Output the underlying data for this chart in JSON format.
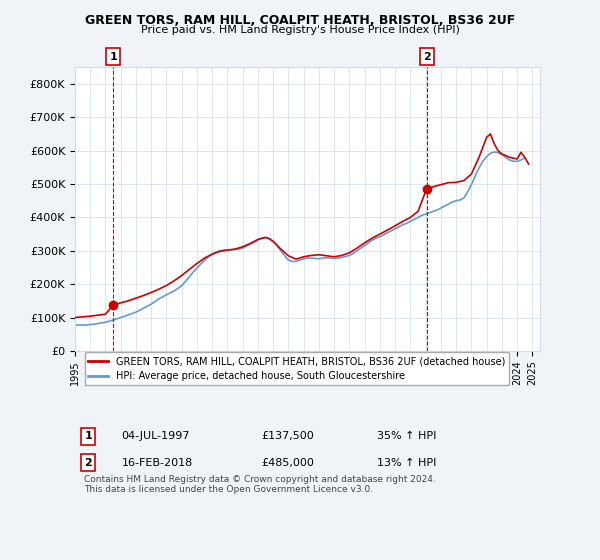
{
  "title": "GREEN TORS, RAM HILL, COALPIT HEATH, BRISTOL, BS36 2UF",
  "subtitle": "Price paid vs. HM Land Registry's House Price Index (HPI)",
  "ylabel": "",
  "xlim_start": 1995,
  "xlim_end": 2025.5,
  "ylim": [
    0,
    850000
  ],
  "yticks": [
    0,
    100000,
    200000,
    300000,
    400000,
    500000,
    600000,
    700000,
    800000
  ],
  "ytick_labels": [
    "£0",
    "£100K",
    "£200K",
    "£300K",
    "£400K",
    "£500K",
    "£600K",
    "£700K",
    "£800K"
  ],
  "xticks": [
    1995,
    1996,
    1997,
    1998,
    1999,
    2000,
    2001,
    2002,
    2003,
    2004,
    2005,
    2006,
    2007,
    2008,
    2009,
    2010,
    2011,
    2012,
    2013,
    2014,
    2015,
    2016,
    2017,
    2018,
    2019,
    2020,
    2021,
    2022,
    2023,
    2024,
    2025
  ],
  "background_color": "#f0f4f8",
  "plot_bg_color": "#ffffff",
  "grid_color": "#d0dce8",
  "red_line_color": "#cc0000",
  "blue_line_color": "#6699cc",
  "marker1_x": 1997.5,
  "marker1_y": 137500,
  "marker1_label": "1",
  "marker1_date": "04-JUL-1997",
  "marker1_price": "£137,500",
  "marker1_hpi": "35% ↑ HPI",
  "marker2_x": 2018.1,
  "marker2_y": 485000,
  "marker2_label": "2",
  "marker2_date": "16-FEB-2018",
  "marker2_price": "£485,000",
  "marker2_hpi": "13% ↑ HPI",
  "legend_red": "GREEN TORS, RAM HILL, COALPIT HEATH, BRISTOL, BS36 2UF (detached house)",
  "legend_blue": "HPI: Average price, detached house, South Gloucestershire",
  "footnote": "Contains HM Land Registry data © Crown copyright and database right 2024.\nThis data is licensed under the Open Government Licence v3.0.",
  "hpi_data_x": [
    1995.0,
    1995.25,
    1995.5,
    1995.75,
    1996.0,
    1996.25,
    1996.5,
    1996.75,
    1997.0,
    1997.25,
    1997.5,
    1997.75,
    1998.0,
    1998.25,
    1998.5,
    1998.75,
    1999.0,
    1999.25,
    1999.5,
    1999.75,
    2000.0,
    2000.25,
    2000.5,
    2000.75,
    2001.0,
    2001.25,
    2001.5,
    2001.75,
    2002.0,
    2002.25,
    2002.5,
    2002.75,
    2003.0,
    2003.25,
    2003.5,
    2003.75,
    2004.0,
    2004.25,
    2004.5,
    2004.75,
    2005.0,
    2005.25,
    2005.5,
    2005.75,
    2006.0,
    2006.25,
    2006.5,
    2006.75,
    2007.0,
    2007.25,
    2007.5,
    2007.75,
    2008.0,
    2008.25,
    2008.5,
    2008.75,
    2009.0,
    2009.25,
    2009.5,
    2009.75,
    2010.0,
    2010.25,
    2010.5,
    2010.75,
    2011.0,
    2011.25,
    2011.5,
    2011.75,
    2012.0,
    2012.25,
    2012.5,
    2012.75,
    2013.0,
    2013.25,
    2013.5,
    2013.75,
    2014.0,
    2014.25,
    2014.5,
    2014.75,
    2015.0,
    2015.25,
    2015.5,
    2015.75,
    2016.0,
    2016.25,
    2016.5,
    2016.75,
    2017.0,
    2017.25,
    2017.5,
    2017.75,
    2018.0,
    2018.25,
    2018.5,
    2018.75,
    2019.0,
    2019.25,
    2019.5,
    2019.75,
    2020.0,
    2020.25,
    2020.5,
    2020.75,
    2021.0,
    2021.25,
    2021.5,
    2021.75,
    2022.0,
    2022.25,
    2022.5,
    2022.75,
    2023.0,
    2023.25,
    2023.5,
    2023.75,
    2024.0,
    2024.25,
    2024.5
  ],
  "hpi_data_y": [
    78000,
    77500,
    77000,
    77500,
    79000,
    80000,
    82000,
    84000,
    86000,
    89000,
    92000,
    96000,
    100000,
    104000,
    108000,
    112000,
    116000,
    122000,
    128000,
    134000,
    140000,
    148000,
    156000,
    162000,
    168000,
    174000,
    180000,
    187000,
    196000,
    208000,
    222000,
    236000,
    248000,
    260000,
    272000,
    282000,
    290000,
    296000,
    300000,
    302000,
    302000,
    303000,
    304000,
    305000,
    308000,
    314000,
    320000,
    326000,
    332000,
    338000,
    340000,
    336000,
    328000,
    316000,
    300000,
    285000,
    272000,
    268000,
    268000,
    272000,
    276000,
    278000,
    278000,
    277000,
    276000,
    278000,
    279000,
    278000,
    277000,
    278000,
    280000,
    283000,
    286000,
    292000,
    300000,
    308000,
    316000,
    324000,
    332000,
    338000,
    342000,
    348000,
    354000,
    360000,
    366000,
    372000,
    378000,
    382000,
    388000,
    394000,
    400000,
    406000,
    410000,
    414000,
    418000,
    422000,
    428000,
    434000,
    440000,
    446000,
    450000,
    452000,
    458000,
    476000,
    498000,
    524000,
    548000,
    568000,
    582000,
    592000,
    596000,
    594000,
    588000,
    580000,
    572000,
    568000,
    568000,
    572000,
    578000
  ],
  "red_data_x": [
    1995.0,
    1995.5,
    1996.0,
    1996.5,
    1997.0,
    1997.5,
    1997.75,
    1998.0,
    1998.5,
    1999.0,
    1999.5,
    2000.0,
    2000.5,
    2001.0,
    2001.5,
    2002.0,
    2002.5,
    2003.0,
    2003.5,
    2004.0,
    2004.5,
    2005.0,
    2005.5,
    2006.0,
    2006.5,
    2007.0,
    2007.5,
    2007.75,
    2008.0,
    2008.5,
    2009.0,
    2009.5,
    2010.0,
    2010.5,
    2011.0,
    2011.5,
    2012.0,
    2012.5,
    2013.0,
    2013.5,
    2014.0,
    2014.5,
    2015.0,
    2015.5,
    2016.0,
    2016.5,
    2017.0,
    2017.5,
    2018.0,
    2018.1,
    2018.5,
    2019.0,
    2019.5,
    2020.0,
    2020.5,
    2021.0,
    2021.5,
    2022.0,
    2022.25,
    2022.5,
    2022.75,
    2023.0,
    2023.5,
    2024.0,
    2024.25,
    2024.5,
    2024.75
  ],
  "red_data_y": [
    100000,
    102000,
    104000,
    107000,
    110000,
    137500,
    140000,
    144000,
    150000,
    158000,
    166000,
    175000,
    185000,
    196000,
    210000,
    226000,
    244000,
    262000,
    278000,
    290000,
    298000,
    302000,
    305000,
    312000,
    322000,
    334000,
    340000,
    336000,
    328000,
    305000,
    285000,
    275000,
    282000,
    286000,
    288000,
    285000,
    282000,
    286000,
    294000,
    308000,
    324000,
    338000,
    350000,
    362000,
    375000,
    388000,
    400000,
    418000,
    478000,
    485000,
    492000,
    498000,
    504000,
    505000,
    510000,
    530000,
    580000,
    640000,
    650000,
    620000,
    600000,
    590000,
    580000,
    575000,
    595000,
    580000,
    560000
  ]
}
